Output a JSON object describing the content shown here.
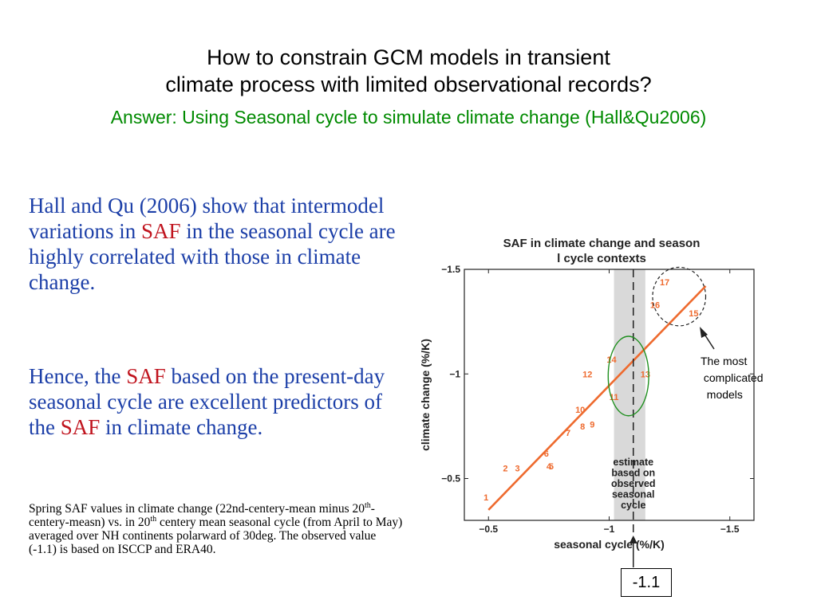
{
  "title": {
    "line1": "How to constrain GCM models in transient",
    "line2": "climate process with limited observational records?",
    "answer": "Answer: Using Seasonal cycle to simulate climate change (Hall&Qu2006)"
  },
  "body": {
    "p1_a": "Hall and Qu (2006) show that intermodel variations in ",
    "p1_saf": "SAF",
    "p1_b": " in the seasonal cycle are highly correlated with those in climate change.",
    "p2_a": "Hence, the ",
    "p2_saf1": "SAF",
    "p2_b": " based on the present-day seasonal cycle are excellent predictors of the ",
    "p2_saf2": "SAF",
    "p2_c": " in climate change.",
    "note_a": "Spring SAF values in climate change (22nd-centery-mean minus 20",
    "note_sup1": "th",
    "note_b": "-centery-measn) vs. in 20",
    "note_sup2": "th",
    "note_c": " centery mean seasonal cycle (from April to May) averaged over NH continents polarward of 30deg. The observed value (-1.1) is based on ISCCP and ERA40."
  },
  "callout": {
    "line1": "The most",
    "line2": " complicated",
    "line3": "  models"
  },
  "observed_value_label": "-1.1",
  "colors": {
    "title_answer": "#008a00",
    "body_text": "#1c3fa8",
    "saf_highlight": "#c0141e",
    "fit_line": "#ee6a2e",
    "model_labels": "#ee6a2e",
    "estimate_band": "#d9d9d9",
    "circle_green": "#1f8f1f"
  },
  "chart_data": {
    "type": "scatter",
    "title": "SAF in climate change and seasonal cycle contexts",
    "xlabel": "seasonal cycle (%/K)",
    "ylabel": "climate change (%/K)",
    "xlim": [
      -0.4,
      -1.6
    ],
    "ylim": [
      -0.3,
      -1.5
    ],
    "xticks": [
      -0.5,
      -1,
      -1.5
    ],
    "xtick_labels": [
      "−0.5",
      "−1",
      "−1.5"
    ],
    "yticks": [
      -0.5,
      -1,
      -1.5
    ],
    "ytick_labels": [
      "−0.5",
      "−1",
      "−1.5"
    ],
    "points": [
      {
        "label": "1",
        "x": -0.49,
        "y": -0.41
      },
      {
        "label": "2",
        "x": -0.57,
        "y": -0.55
      },
      {
        "label": "3",
        "x": -0.62,
        "y": -0.55
      },
      {
        "label": "4",
        "x": -0.75,
        "y": -0.56
      },
      {
        "label": "5",
        "x": -0.76,
        "y": -0.56
      },
      {
        "label": "6",
        "x": -0.74,
        "y": -0.62
      },
      {
        "label": "7",
        "x": -0.83,
        "y": -0.72
      },
      {
        "label": "8",
        "x": -0.89,
        "y": -0.75
      },
      {
        "label": "9",
        "x": -0.93,
        "y": -0.76
      },
      {
        "label": "10",
        "x": -0.88,
        "y": -0.83
      },
      {
        "label": "11",
        "x": -1.02,
        "y": -0.89
      },
      {
        "label": "12",
        "x": -0.91,
        "y": -1.0
      },
      {
        "label": "13",
        "x": -1.15,
        "y": -1.0
      },
      {
        "label": "14",
        "x": -1.01,
        "y": -1.07
      },
      {
        "label": "15",
        "x": -1.35,
        "y": -1.29
      },
      {
        "label": "16",
        "x": -1.19,
        "y": -1.33
      },
      {
        "label": "17",
        "x": -1.23,
        "y": -1.44
      }
    ],
    "fit_line": {
      "x": [
        -0.5,
        -1.4
      ],
      "y": [
        -0.35,
        -1.42
      ]
    },
    "observed_estimate": {
      "x": -1.1,
      "band": [
        -1.02,
        -1.15
      ],
      "label": "estimate based on observed seasonal cycle"
    },
    "circles": [
      {
        "label": "dashed",
        "x": -1.29,
        "y": -1.37,
        "rx": 0.11,
        "ry": 0.14
      },
      {
        "label": "green",
        "x": -1.08,
        "y": -0.99,
        "rx": 0.084,
        "ry": 0.19
      }
    ],
    "grid": false,
    "legend": "none"
  }
}
